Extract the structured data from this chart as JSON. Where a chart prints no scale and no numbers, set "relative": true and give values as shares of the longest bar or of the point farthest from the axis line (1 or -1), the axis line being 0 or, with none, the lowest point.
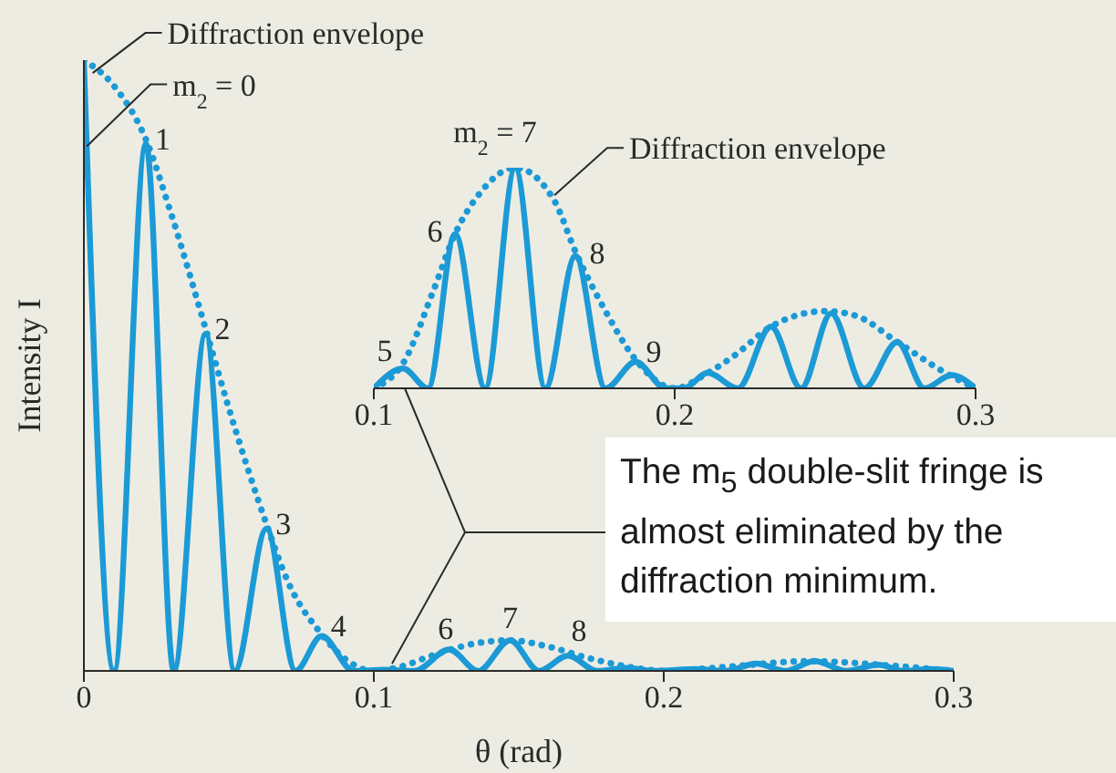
{
  "chart_data": [
    {
      "type": "line",
      "ylabel": "Intensity I",
      "xlabel": "θ (rad)",
      "relative": true,
      "xlim": [
        0,
        0.3
      ],
      "xticks": [
        0,
        0.1,
        0.2,
        0.3
      ],
      "tick_labels": "x",
      "grid": false,
      "marker": "none",
      "series": [
        {
          "color": "#1b9ad6",
          "line_style": "solid",
          "x": [
            0,
            0.0104,
            0.0214,
            0.031,
            0.042,
            0.052,
            0.063,
            0.073,
            0.082,
            0.093,
            0.104,
            0.114,
            0.126,
            0.136,
            0.147,
            0.157,
            0.167,
            0.177,
            0.187,
            0.197,
            0.211,
            0.221,
            0.232,
            0.242,
            0.252,
            0.263,
            0.274,
            0.283,
            0.292,
            0.3
          ],
          "values": [
            1,
            0,
            0.863,
            0,
            0.552,
            0,
            0.233,
            0,
            0.057,
            0,
            0.002,
            0,
            0.035,
            0,
            0.05,
            0,
            0.025,
            0,
            0.005,
            0,
            0.003,
            0,
            0.012,
            0,
            0.016,
            0,
            0.01,
            0,
            0.003,
            0
          ]
        },
        {
          "color": "#1b9ad6",
          "line_style": "dotted",
          "x": [
            0,
            0.01,
            0.0214,
            0.03,
            0.042,
            0.05,
            0.063,
            0.07,
            0.082,
            0.09,
            0.1,
            0.11,
            0.12,
            0.135,
            0.147,
            0.16,
            0.175,
            0.19,
            0.2,
            0.22,
            0.25,
            0.28,
            0.3
          ],
          "values": [
            1,
            0.96,
            0.87,
            0.75,
            0.56,
            0.43,
            0.24,
            0.15,
            0.06,
            0.02,
            0,
            0.008,
            0.025,
            0.045,
            0.05,
            0.04,
            0.02,
            0.005,
            0,
            0.006,
            0.016,
            0.008,
            0
          ]
        }
      ],
      "annotations": [
        {
          "text": "Diffraction envelope",
          "x": 0.003,
          "y": 0.97
        },
        {
          "text": "m$_{2}$ = 0",
          "x": 0.001,
          "y": 0.85
        },
        {
          "text": "1",
          "x": 0.0214,
          "y": 0.863
        },
        {
          "text": "2",
          "x": 0.042,
          "y": 0.552
        },
        {
          "text": "3",
          "x": 0.063,
          "y": 0.233
        },
        {
          "text": "4",
          "x": 0.082,
          "y": 0.057
        },
        {
          "text": "6",
          "x": 0.126,
          "y": 0.035
        },
        {
          "text": "7",
          "x": 0.147,
          "y": 0.05
        },
        {
          "text": "8",
          "x": 0.167,
          "y": 0.025
        },
        "The m$_{5}$ double-slit fringe is almost eliminated by the diffraction minimum."
      ]
    },
    {
      "type": "line",
      "relative": true,
      "xlim": [
        0.1,
        0.3
      ],
      "xticks": [
        0.1,
        0.2,
        0.3
      ],
      "tick_labels": "x",
      "grid": false,
      "marker": "none",
      "series": [
        {
          "color": "#1b9ad6",
          "line_style": "solid",
          "x": [
            0.1,
            0.1097,
            0.118,
            0.127,
            0.137,
            0.147,
            0.157,
            0.167,
            0.177,
            0.187,
            0.197,
            0.203,
            0.211,
            0.221,
            0.232,
            0.242,
            0.252,
            0.263,
            0.274,
            0.283,
            0.292,
            0.3
          ],
          "values": [
            0,
            0.09,
            0,
            0.7,
            0,
            1,
            0,
            0.6,
            0,
            0.12,
            0,
            0,
            0.07,
            0,
            0.28,
            0,
            0.34,
            0,
            0.21,
            0,
            0.06,
            0
          ]
        },
        {
          "color": "#1b9ad6",
          "line_style": "dotted",
          "x": [
            0.1,
            0.11,
            0.12,
            0.127,
            0.135,
            0.147,
            0.16,
            0.167,
            0.177,
            0.187,
            0.2,
            0.211,
            0.22,
            0.232,
            0.25,
            0.26,
            0.274,
            0.29,
            0.3
          ],
          "values": [
            0,
            0.12,
            0.45,
            0.7,
            0.88,
            1,
            0.85,
            0.62,
            0.35,
            0.13,
            0,
            0.07,
            0.15,
            0.28,
            0.35,
            0.33,
            0.21,
            0.07,
            0
          ]
        }
      ],
      "annotations": [
        {
          "text": "m$_{2}$ = 7",
          "x": 0.147,
          "y": 1
        },
        {
          "text": "Diffraction envelope",
          "x": 0.16,
          "y": 0.85
        },
        {
          "text": "5",
          "x": 0.1097,
          "y": 0.09
        },
        {
          "text": "6",
          "x": 0.127,
          "y": 0.7
        },
        {
          "text": "8",
          "x": 0.167,
          "y": 0.6
        },
        {
          "text": "9",
          "x": 0.187,
          "y": 0.12
        }
      ]
    }
  ]
}
